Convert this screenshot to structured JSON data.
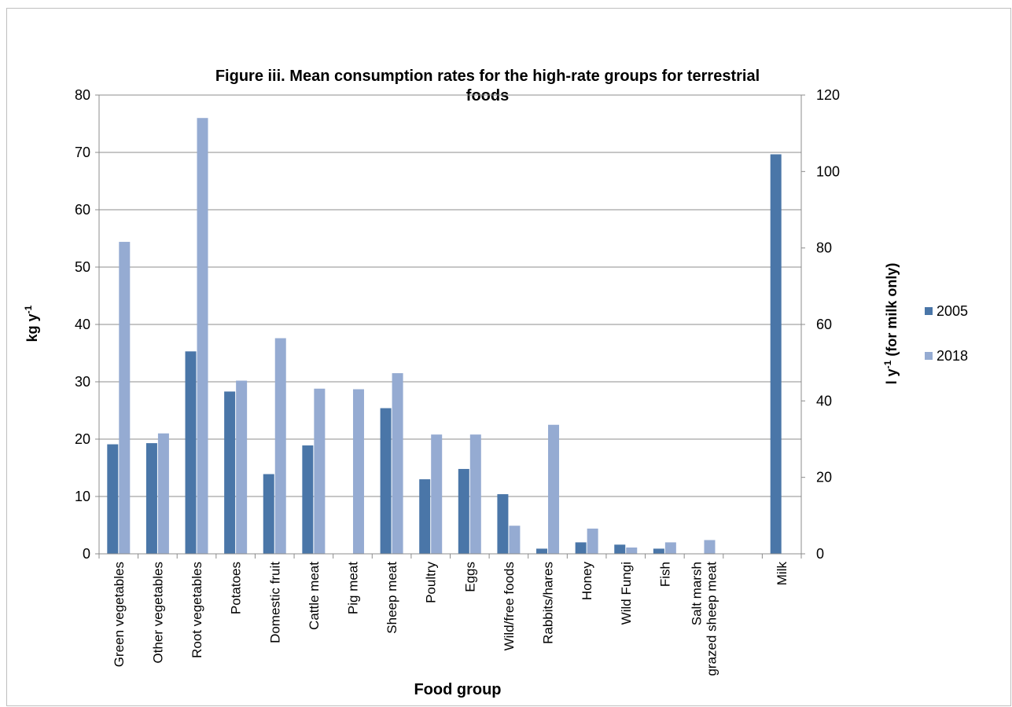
{
  "chart_data": {
    "type": "bar",
    "title_line1": "Figure iii.  Mean consumption rates for the high-rate groups for terrestrial",
    "title_line2": "foods",
    "xlabel": "Food group",
    "ylabel_main": "kg y",
    "ylabel_sup": "-1",
    "y2label_main": "l y",
    "y2label_sup": "-1",
    "y2label_rest": " (for milk only)",
    "ylim": [
      0,
      80
    ],
    "y_ticks": [
      0,
      10,
      20,
      30,
      40,
      50,
      60,
      70,
      80
    ],
    "y2lim": [
      0,
      120
    ],
    "y2_ticks": [
      0,
      20,
      40,
      60,
      80,
      100,
      120
    ],
    "grid": true,
    "legend_position": "right",
    "categories": [
      [
        "Green vegetables"
      ],
      [
        "Other vegetables"
      ],
      [
        "Root vegetables"
      ],
      [
        "Potatoes"
      ],
      [
        "Domestic fruit"
      ],
      [
        "Cattle meat"
      ],
      [
        "Pig meat"
      ],
      [
        "Sheep meat"
      ],
      [
        "Poultry"
      ],
      [
        "Eggs"
      ],
      [
        "Wild/free foods"
      ],
      [
        "Rabbits/hares"
      ],
      [
        "Honey"
      ],
      [
        "Wild Fungi"
      ],
      [
        "Fish"
      ],
      [
        "Salt marsh",
        "grazed sheep meat"
      ],
      [
        ""
      ],
      [
        "Milk"
      ]
    ],
    "series": [
      {
        "name": "2005",
        "color": "#4a76a8",
        "values": [
          19.1,
          19.3,
          35.3,
          28.3,
          13.9,
          18.9,
          null,
          25.4,
          13.0,
          14.8,
          10.4,
          0.9,
          2.0,
          1.6,
          0.9,
          null,
          null,
          104.5
        ],
        "axis": [
          "left",
          "left",
          "left",
          "left",
          "left",
          "left",
          "left",
          "left",
          "left",
          "left",
          "left",
          "left",
          "left",
          "left",
          "left",
          "left",
          "left",
          "right"
        ]
      },
      {
        "name": "2018",
        "color": "#95abd2",
        "values": [
          54.4,
          21.0,
          76.0,
          30.2,
          37.6,
          28.8,
          28.7,
          31.5,
          20.8,
          20.8,
          4.9,
          22.5,
          4.4,
          1.1,
          2.0,
          2.4,
          null,
          null
        ],
        "axis": [
          "left",
          "left",
          "left",
          "left",
          "left",
          "left",
          "left",
          "left",
          "left",
          "left",
          "left",
          "left",
          "left",
          "left",
          "left",
          "left",
          "left",
          "right"
        ]
      }
    ]
  }
}
